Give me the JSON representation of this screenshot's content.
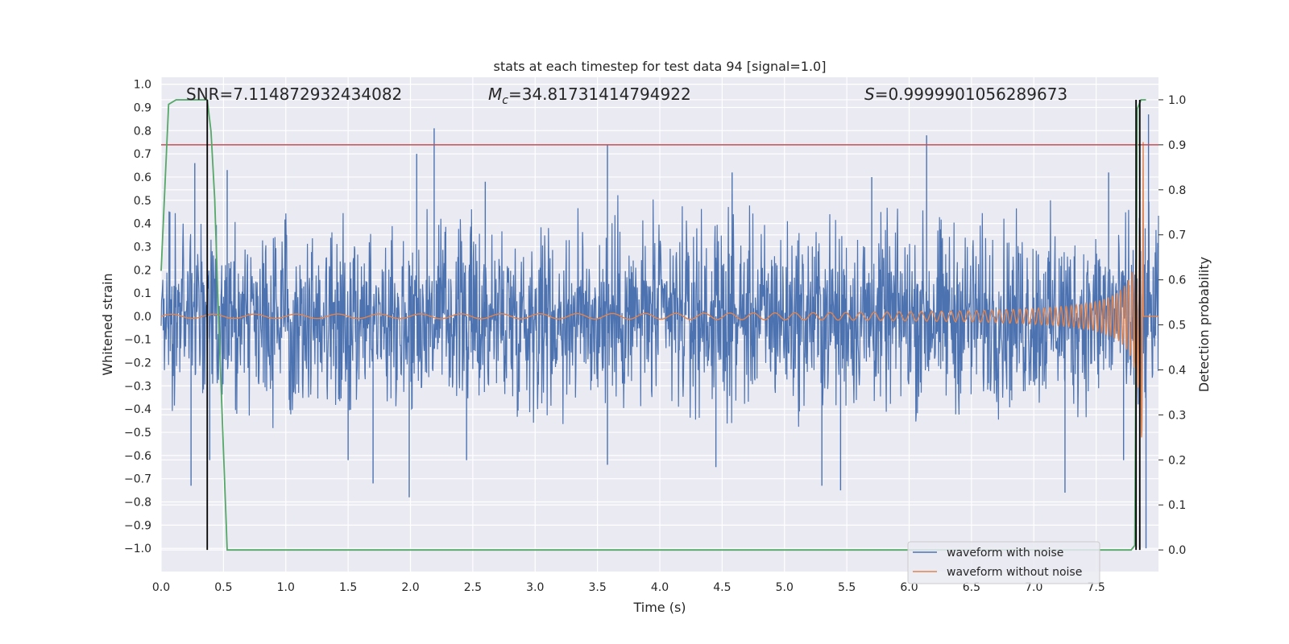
{
  "chart_data": {
    "type": "line",
    "title": "stats at each timestep for test data 94 [signal=1.0]",
    "xlabel": "Time (s)",
    "ylabel": "Whitened strain",
    "y2label": "Detection probability",
    "xlim": [
      0.0,
      8.0
    ],
    "ylim": [
      -1.1,
      1.03
    ],
    "y2lim": [
      -0.048,
      1.05
    ],
    "x_ticks": [
      "0.0",
      "0.5",
      "1.0",
      "1.5",
      "2.0",
      "2.5",
      "3.0",
      "3.5",
      "4.0",
      "4.5",
      "5.0",
      "5.5",
      "6.0",
      "6.5",
      "7.0",
      "7.5"
    ],
    "y_ticks": [
      "1.0",
      "0.9",
      "0.8",
      "0.7",
      "0.6",
      "0.5",
      "0.4",
      "0.3",
      "0.2",
      "0.1",
      "0.0",
      "−0.1",
      "−0.2",
      "−0.3",
      "−0.4",
      "−0.5",
      "−0.6",
      "−0.7",
      "−0.8",
      "−0.9",
      "−1.0"
    ],
    "y2_ticks": [
      "1.0",
      "0.9",
      "0.8",
      "0.7",
      "0.6",
      "0.5",
      "0.4",
      "0.3",
      "0.2",
      "0.1",
      "0.0"
    ],
    "annotations": {
      "snr": "SNR=7.114872932434082",
      "mc_symbol": "M",
      "mc_sub": "c",
      "mc_value": "=34.81731414794922",
      "s_symbol": "S",
      "s_value": "=0.9999901056289673"
    },
    "legend": {
      "position": "lower-right",
      "entries": [
        "waveform with noise",
        "waveform without noise"
      ]
    },
    "threshold_line": {
      "axis": "y2",
      "value": 0.9,
      "color": "#c44e52"
    },
    "vertical_markers": [
      0.37,
      7.82,
      7.85
    ],
    "noisy_waveform": {
      "name": "waveform with noise",
      "color": "#4c72b0",
      "duration": 8.0,
      "envelope_p95": 0.42,
      "spikes": [
        {
          "t": 0.07,
          "v": 0.45
        },
        {
          "t": 0.24,
          "v": -0.73
        },
        {
          "t": 0.27,
          "v": 0.66
        },
        {
          "t": 0.39,
          "v": -0.62
        },
        {
          "t": 0.53,
          "v": 0.63
        },
        {
          "t": 1.5,
          "v": -0.62
        },
        {
          "t": 1.7,
          "v": -0.72
        },
        {
          "t": 1.99,
          "v": -0.78
        },
        {
          "t": 2.05,
          "v": 0.7
        },
        {
          "t": 2.19,
          "v": 0.81
        },
        {
          "t": 2.45,
          "v": -0.62
        },
        {
          "t": 2.6,
          "v": 0.58
        },
        {
          "t": 3.58,
          "v": 0.74
        },
        {
          "t": 3.58,
          "v": -0.64
        },
        {
          "t": 4.45,
          "v": -0.65
        },
        {
          "t": 4.58,
          "v": 0.62
        },
        {
          "t": 5.3,
          "v": -0.73
        },
        {
          "t": 5.45,
          "v": -0.75
        },
        {
          "t": 5.7,
          "v": 0.6
        },
        {
          "t": 6.14,
          "v": 0.78
        },
        {
          "t": 7.25,
          "v": -0.76
        },
        {
          "t": 7.6,
          "v": 0.62
        },
        {
          "t": 7.72,
          "v": -0.62
        },
        {
          "t": 7.9,
          "v": -1.0
        },
        {
          "t": 7.92,
          "v": 0.87
        }
      ]
    },
    "clean_waveform": {
      "name": "waveform without noise",
      "color": "#dd8452",
      "chirp_end": 7.88,
      "f_start": 3.0,
      "f_end": 40.0,
      "peak_amplitude": 0.88
    },
    "detection_probability": {
      "name": "Detection probability",
      "color": "#55a868",
      "axis": "y2",
      "x": [
        0.0,
        0.06,
        0.12,
        0.18,
        0.25,
        0.31,
        0.37,
        0.4,
        0.43,
        0.46,
        0.5,
        0.53,
        0.59,
        7.0,
        7.6,
        7.78,
        7.81,
        7.83,
        7.86,
        7.9
      ],
      "y": [
        0.62,
        0.99,
        1.0,
        1.0,
        1.0,
        1.0,
        1.0,
        0.93,
        0.78,
        0.52,
        0.22,
        0.0,
        0.0,
        0.0,
        0.0,
        0.0,
        0.01,
        0.98,
        1.0,
        1.0
      ]
    }
  }
}
